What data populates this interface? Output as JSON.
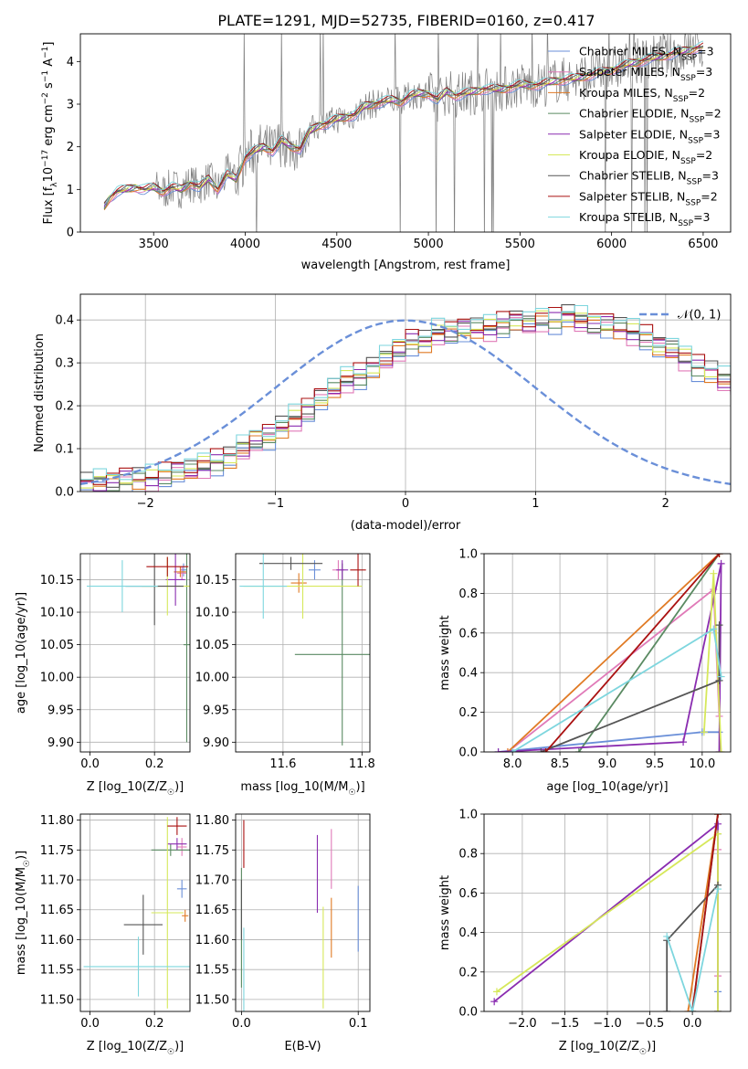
{
  "figure": {
    "title": "PLATE=1291, MJD=52735, FIBERID=0160, z=0.417"
  },
  "colors": {
    "chabrier_miles": "#6a8fd8",
    "salpeter_miles": "#e07ab8",
    "kroupa_miles": "#e07a24",
    "chabrier_elodie": "#5a8a62",
    "salpeter_elodie": "#8a2cb0",
    "kroupa_elodie": "#d6e85a",
    "chabrier_stelib": "#555555",
    "salpeter_stelib": "#aa1111",
    "kroupa_stelib": "#7ed6de",
    "data": "#808080",
    "normal": "#6a8fd8"
  },
  "chart_data": [
    {
      "id": "spectrum",
      "type": "line",
      "title": "PLATE=1291, MJD=52735, FIBERID=0160, z=0.417",
      "xlabel": "wavelength [Angstrom, rest frame]",
      "ylabel": "Flux [f_λ 10^-17 erg cm^-2 s^-1 A^-1]",
      "xlim": [
        3100,
        6650
      ],
      "ylim": [
        0,
        4.65
      ],
      "xticks": [
        3500,
        4000,
        4500,
        5000,
        5500,
        6000,
        6500
      ],
      "yticks": [
        0,
        1,
        2,
        3,
        4
      ],
      "legend_position": "top-right",
      "legend": [
        "Chabrier MILES, N_SSP=3",
        "Salpeter MILES, N_SSP=3",
        "Kroupa MILES, N_SSP=2",
        "Chabrier ELODIE, N_SSP=2",
        "Salpeter ELODIE, N_SSP=3",
        "Kroupa ELODIE, N_SSP=2",
        "Chabrier STELIB, N_SSP=3",
        "Salpeter STELIB, N_SSP=2",
        "Kroupa STELIB, N_SSP=3"
      ],
      "model_x": [
        3230,
        3260,
        3300,
        3350,
        3400,
        3450,
        3500,
        3550,
        3600,
        3650,
        3700,
        3750,
        3800,
        3850,
        3900,
        3950,
        4000,
        4050,
        4100,
        4150,
        4200,
        4250,
        4300,
        4350,
        4400,
        4450,
        4500,
        4550,
        4600,
        4650,
        4700,
        4750,
        4800,
        4850,
        4900,
        4950,
        5000,
        5050,
        5100,
        5150,
        5200,
        5300,
        5400,
        5500,
        5600,
        5700,
        5800,
        5900,
        6000,
        6100,
        6200,
        6300,
        6400,
        6500
      ],
      "model_y": [
        0.6,
        0.8,
        0.95,
        1.0,
        1.05,
        1.0,
        1.05,
        0.95,
        1.05,
        1.0,
        1.15,
        1.05,
        1.25,
        1.0,
        1.35,
        1.25,
        1.75,
        1.9,
        2.0,
        1.9,
        2.15,
        2.0,
        1.95,
        2.35,
        2.5,
        2.55,
        2.65,
        2.7,
        2.75,
        2.95,
        3.0,
        3.05,
        3.1,
        3.05,
        3.2,
        3.25,
        3.25,
        3.1,
        3.3,
        3.2,
        3.25,
        3.35,
        3.35,
        3.45,
        3.45,
        3.55,
        3.6,
        3.7,
        3.8,
        3.95,
        4.05,
        4.15,
        4.25,
        4.35
      ]
    },
    {
      "id": "residuals",
      "type": "step",
      "xlabel": "(data-model)/error",
      "ylabel": "Normed distribution",
      "xlim": [
        -2.5,
        2.5
      ],
      "ylim": [
        0,
        0.46
      ],
      "xticks": [
        -2,
        -1,
        0,
        1,
        2
      ],
      "yticks": [
        0.0,
        0.1,
        0.2,
        0.3,
        0.4
      ],
      "legend_position": "top-right",
      "legend": [
        "𝒩(0, 1)"
      ],
      "bin_width": 0.1,
      "base_bins": [
        0.02,
        0.02,
        0.02,
        0.03,
        0.03,
        0.03,
        0.04,
        0.05,
        0.05,
        0.06,
        0.07,
        0.08,
        0.1,
        0.12,
        0.13,
        0.15,
        0.17,
        0.19,
        0.22,
        0.24,
        0.26,
        0.27,
        0.29,
        0.31,
        0.33,
        0.35,
        0.35,
        0.37,
        0.37,
        0.38,
        0.38,
        0.38,
        0.39,
        0.4,
        0.39,
        0.4,
        0.4,
        0.41,
        0.4,
        0.39,
        0.39,
        0.38,
        0.37,
        0.36,
        0.34,
        0.33,
        0.31,
        0.29,
        0.28,
        0.26,
        0.25,
        0.24,
        0.22,
        0.2,
        0.2,
        0.19,
        0.18,
        0.16,
        0.15,
        0.14,
        0.13,
        0.12,
        0.12,
        0.11,
        0.11,
        0.1,
        0.1,
        0.09,
        0.08,
        0.08,
        0.09,
        0.08,
        0.09,
        0.08,
        0.09
      ]
    },
    {
      "id": "age-vs-z",
      "type": "errorbar",
      "xlabel": "Z [log10(Z/Z☉)]",
      "ylabel": "age [log10(age/yr)]",
      "xlim": [
        -0.03,
        0.31
      ],
      "ylim": [
        9.885,
        10.19
      ],
      "xticks": [
        0.0,
        0.2
      ],
      "yticks": [
        9.9,
        9.95,
        10.0,
        10.05,
        10.1,
        10.15
      ],
      "points": [
        {
          "series": "chabrier_miles",
          "x": 0.29,
          "y": 10.165,
          "xe": 0.01,
          "ye": 0.01
        },
        {
          "series": "salpeter_miles",
          "x": 0.285,
          "y": 10.16,
          "xe": 0.015,
          "ye": 0.01
        },
        {
          "series": "kroupa_miles",
          "x": 0.28,
          "y": 10.162,
          "xe": 0.02,
          "ye": 0.008
        },
        {
          "series": "chabrier_elodie",
          "x": 0.3,
          "y": 10.05,
          "xe": 0.01,
          "ye": 0.15
        },
        {
          "series": "salpeter_elodie",
          "x": 0.265,
          "y": 10.15,
          "xe": 0.03,
          "ye": 0.04
        },
        {
          "series": "kroupa_elodie",
          "x": 0.24,
          "y": 10.14,
          "xe": 0.08,
          "ye": 0.045
        },
        {
          "series": "chabrier_stelib",
          "x": 0.2,
          "y": 10.14,
          "xe": 0.09,
          "ye": 0.06
        },
        {
          "series": "salpeter_stelib",
          "x": 0.24,
          "y": 10.17,
          "xe": 0.065,
          "ye": 0.015
        },
        {
          "series": "kroupa_stelib",
          "x": 0.1,
          "y": 10.14,
          "xe": 0.11,
          "ye": 0.04
        }
      ]
    },
    {
      "id": "age-vs-mass",
      "type": "errorbar",
      "xlabel": "mass [log10(M/M☉)]",
      "ylabel": "",
      "xlim": [
        11.48,
        11.82
      ],
      "ylim": [
        9.885,
        10.19
      ],
      "xticks": [
        11.6,
        11.8
      ],
      "yticks": [
        9.9,
        9.95,
        10.0,
        10.05,
        10.1,
        10.15
      ],
      "points": [
        {
          "series": "chabrier_miles",
          "x": 11.68,
          "y": 10.165,
          "xe": 0.015,
          "ye": 0.015
        },
        {
          "series": "salpeter_miles",
          "x": 11.74,
          "y": 10.165,
          "xe": 0.015,
          "ye": 0.015
        },
        {
          "series": "kroupa_miles",
          "x": 11.64,
          "y": 10.145,
          "xe": 0.02,
          "ye": 0.015
        },
        {
          "series": "chabrier_elodie",
          "x": 11.75,
          "y": 10.035,
          "xe": 0.12,
          "ye": 0.14
        },
        {
          "series": "salpeter_elodie",
          "x": 11.75,
          "y": 10.165,
          "xe": 0.015,
          "ye": 0.015
        },
        {
          "series": "kroupa_elodie",
          "x": 11.65,
          "y": 10.14,
          "xe": 0.15,
          "ye": 0.05
        },
        {
          "series": "chabrier_stelib",
          "x": 11.62,
          "y": 10.175,
          "xe": 0.08,
          "ye": 0.01
        },
        {
          "series": "salpeter_stelib",
          "x": 11.79,
          "y": 10.165,
          "xe": 0.02,
          "ye": 0.025
        },
        {
          "series": "kroupa_stelib",
          "x": 11.55,
          "y": 10.14,
          "xe": 0.06,
          "ye": 0.05
        }
      ]
    },
    {
      "id": "mass-weight-vs-age",
      "type": "line",
      "xlabel": "age [log10(age/yr)]",
      "ylabel": "mass weight",
      "xlim": [
        7.7,
        10.3
      ],
      "ylim": [
        0.0,
        1.0
      ],
      "xticks": [
        8.0,
        8.5,
        9.0,
        9.5,
        10.0
      ],
      "yticks": [
        0.0,
        0.2,
        0.4,
        0.6,
        0.8,
        1.0
      ],
      "series": [
        {
          "series": "chabrier_miles",
          "x": [
            7.85,
            10.0,
            10.18
          ],
          "y": [
            0.0,
            0.1,
            0.1
          ]
        },
        {
          "series": "salpeter_miles",
          "x": [
            7.95,
            10.12,
            10.18
          ],
          "y": [
            0.0,
            0.82,
            0.18
          ]
        },
        {
          "series": "kroupa_miles",
          "x": [
            7.95,
            10.18
          ],
          "y": [
            0.0,
            1.0
          ]
        },
        {
          "series": "chabrier_elodie",
          "x": [
            8.7,
            10.18
          ],
          "y": [
            0.0,
            1.0
          ]
        },
        {
          "series": "salpeter_elodie",
          "x": [
            7.85,
            9.8,
            10.2,
            10.18
          ],
          "y": [
            0.0,
            0.05,
            0.95,
            0.0
          ]
        },
        {
          "series": "kroupa_elodie",
          "x": [
            10.02,
            10.12,
            10.2
          ],
          "y": [
            0.1,
            0.9,
            0.0
          ]
        },
        {
          "series": "chabrier_stelib",
          "x": [
            8.3,
            10.18,
            10.18
          ],
          "y": [
            0.0,
            0.36,
            0.64
          ]
        },
        {
          "series": "salpeter_stelib",
          "x": [
            8.35,
            10.18
          ],
          "y": [
            0.0,
            1.0
          ]
        },
        {
          "series": "kroupa_stelib",
          "x": [
            8.0,
            10.12,
            10.2
          ],
          "y": [
            0.0,
            0.62,
            0.38
          ]
        }
      ]
    },
    {
      "id": "mass-vs-z",
      "type": "errorbar",
      "xlabel": "Z [log10(Z/Z☉)]",
      "ylabel": "mass [log10(M/M☉)]",
      "xlim": [
        -0.03,
        0.31
      ],
      "ylim": [
        11.48,
        11.81
      ],
      "xticks": [
        0.0,
        0.2
      ],
      "yticks": [
        11.5,
        11.55,
        11.6,
        11.65,
        11.7,
        11.75,
        11.8
      ],
      "points": [
        {
          "series": "chabrier_miles",
          "x": 0.285,
          "y": 11.685,
          "xe": 0.015,
          "ye": 0.015
        },
        {
          "series": "salpeter_miles",
          "x": 0.285,
          "y": 11.755,
          "xe": 0.015,
          "ye": 0.015
        },
        {
          "series": "kroupa_miles",
          "x": 0.295,
          "y": 11.64,
          "xe": 0.01,
          "ye": 0.01
        },
        {
          "series": "chabrier_elodie",
          "x": 0.25,
          "y": 11.75,
          "xe": 0.06,
          "ye": 0.01
        },
        {
          "series": "salpeter_elodie",
          "x": 0.27,
          "y": 11.76,
          "xe": 0.03,
          "ye": 0.01
        },
        {
          "series": "kroupa_elodie",
          "x": 0.24,
          "y": 11.645,
          "xe": 0.05,
          "ye": 0.16
        },
        {
          "series": "chabrier_stelib",
          "x": 0.165,
          "y": 11.625,
          "xe": 0.06,
          "ye": 0.05
        },
        {
          "series": "salpeter_stelib",
          "x": 0.27,
          "y": 11.79,
          "xe": 0.03,
          "ye": 0.015
        },
        {
          "series": "kroupa_stelib",
          "x": 0.15,
          "y": 11.555,
          "xe": 0.17,
          "ye": 0.05
        }
      ]
    },
    {
      "id": "mass-vs-ebv",
      "type": "errorbar",
      "xlabel": "E(B-V)",
      "ylabel": "",
      "xlim": [
        -0.005,
        0.11
      ],
      "ylim": [
        11.48,
        11.81
      ],
      "xticks": [
        0.0,
        0.1
      ],
      "yticks": [
        11.5,
        11.55,
        11.6,
        11.65,
        11.7,
        11.75,
        11.8
      ],
      "points": [
        {
          "series": "chabrier_miles",
          "x": 0.1,
          "y": 11.635,
          "xe": 0.0,
          "ye": 0.055
        },
        {
          "series": "salpeter_miles",
          "x": 0.077,
          "y": 11.735,
          "xe": 0.0,
          "ye": 0.05
        },
        {
          "series": "kroupa_miles",
          "x": 0.077,
          "y": 11.62,
          "xe": 0.0,
          "ye": 0.05
        },
        {
          "series": "chabrier_elodie",
          "x": 0.0,
          "y": 11.62,
          "xe": 0.0,
          "ye": 0.1
        },
        {
          "series": "salpeter_elodie",
          "x": 0.065,
          "y": 11.71,
          "xe": 0.0,
          "ye": 0.065
        },
        {
          "series": "kroupa_elodie",
          "x": 0.07,
          "y": 11.57,
          "xe": 0.0,
          "ye": 0.085
        },
        {
          "series": "chabrier_stelib",
          "x": 0.0,
          "y": 11.65,
          "xe": 0.0,
          "ye": 0.05
        },
        {
          "series": "salpeter_stelib",
          "x": 0.002,
          "y": 11.76,
          "xe": 0.0,
          "ye": 0.04
        },
        {
          "series": "kroupa_stelib",
          "x": 0.002,
          "y": 11.55,
          "xe": 0.0,
          "ye": 0.07
        }
      ]
    },
    {
      "id": "mass-weight-vs-z",
      "type": "line",
      "xlabel": "Z [log10(Z/Z☉)]",
      "ylabel": "mass weight",
      "xlim": [
        -2.45,
        0.45
      ],
      "ylim": [
        0.0,
        1.0
      ],
      "xticks": [
        -2.0,
        -1.5,
        -1.0,
        -0.5,
        0.0
      ],
      "yticks": [
        0.0,
        0.2,
        0.4,
        0.6,
        0.8,
        1.0
      ],
      "series": [
        {
          "series": "chabrier_miles",
          "x": [
            0.3,
            0.3,
            0.3
          ],
          "y": [
            0.0,
            0.1,
            0.9
          ]
        },
        {
          "series": "salpeter_miles",
          "x": [
            0.3,
            0.3
          ],
          "y": [
            0.18,
            0.82
          ]
        },
        {
          "series": "kroupa_miles",
          "x": [
            -0.05,
            0.3
          ],
          "y": [
            0.0,
            1.0
          ]
        },
        {
          "series": "chabrier_elodie",
          "x": [
            0.0,
            0.3
          ],
          "y": [
            0.0,
            1.0
          ]
        },
        {
          "series": "salpeter_elodie",
          "x": [
            -2.33,
            0.3,
            0.3
          ],
          "y": [
            0.05,
            0.95,
            0.0
          ]
        },
        {
          "series": "kroupa_elodie",
          "x": [
            -2.3,
            0.3,
            0.3
          ],
          "y": [
            0.1,
            0.9,
            0.0
          ]
        },
        {
          "series": "chabrier_stelib",
          "x": [
            -0.3,
            -0.3,
            0.3
          ],
          "y": [
            0.0,
            0.36,
            0.64
          ]
        },
        {
          "series": "salpeter_stelib",
          "x": [
            0.0,
            0.3
          ],
          "y": [
            0.0,
            1.0
          ]
        },
        {
          "series": "kroupa_stelib",
          "x": [
            -0.3,
            0.0,
            0.3
          ],
          "y": [
            0.38,
            0.0,
            0.62
          ]
        }
      ]
    }
  ]
}
